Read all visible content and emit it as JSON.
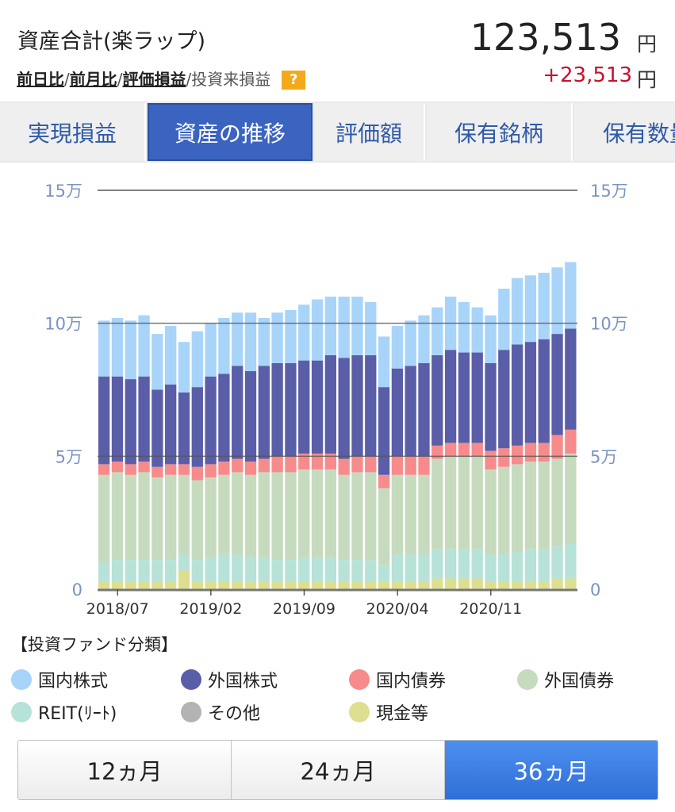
{
  "header": {
    "title": "資産合計(楽ラップ)",
    "total": "123,513",
    "total_unit": "円",
    "gain": "+23,513",
    "gain_unit": "円",
    "links": [
      "前日比",
      "前月比",
      "評価損益"
    ],
    "link_sep": "/",
    "plain_link": "/投資来損益",
    "help": "?"
  },
  "tabs": [
    {
      "label": "実現損益"
    },
    {
      "label": "資産の推移"
    },
    {
      "label": "評価額"
    },
    {
      "label": "保有銘柄"
    },
    {
      "label": "保有数量"
    }
  ],
  "chart_data": {
    "type": "bar",
    "stacked": true,
    "y_ticks": [
      "0",
      "5万",
      "10万",
      "15万"
    ],
    "ylim": [
      0,
      150000
    ],
    "x_tick_labels": [
      "2018/07",
      "2019/02",
      "2019/09",
      "2020/04",
      "2020/11"
    ],
    "x_tick_indices": [
      1,
      8,
      15,
      22,
      29
    ],
    "categories_count": 36,
    "legend": [
      {
        "name": "国内株式",
        "color": "#a8d4fa"
      },
      {
        "name": "外国株式",
        "color": "#5a5ea8"
      },
      {
        "name": "国内債券",
        "color": "#f78b8b"
      },
      {
        "name": "外国債券",
        "color": "#c6dbbe"
      },
      {
        "name": "REIT(ﾘｰﾄ)",
        "color": "#b7e2d8"
      },
      {
        "name": "その他",
        "color": "#b3b3b3"
      },
      {
        "name": "現金等",
        "color": "#dede90"
      }
    ],
    "series": [
      {
        "name": "現金等",
        "values": [
          3000,
          3000,
          3000,
          3000,
          3000,
          3000,
          7000,
          3000,
          3000,
          3000,
          3000,
          3000,
          3000,
          3000,
          3000,
          3000,
          3000,
          3000,
          3000,
          3000,
          3000,
          3000,
          3000,
          3000,
          3000,
          4000,
          4000,
          4000,
          4000,
          3000,
          3000,
          3000,
          3000,
          3000,
          4000,
          4000
        ]
      },
      {
        "name": "REIT(ﾘｰﾄ)",
        "values": [
          7000,
          8000,
          8000,
          8000,
          8000,
          8000,
          6000,
          8000,
          9000,
          10000,
          10000,
          9000,
          9000,
          8000,
          8000,
          9000,
          9000,
          9000,
          8000,
          8000,
          8000,
          6000,
          10000,
          10000,
          10000,
          11000,
          11000,
          11000,
          11000,
          10000,
          10000,
          11000,
          12000,
          12000,
          12000,
          13000
        ]
      },
      {
        "name": "外国債券",
        "values": [
          33000,
          33000,
          32000,
          33000,
          31000,
          32000,
          30000,
          30000,
          30000,
          30000,
          31000,
          31000,
          32000,
          33000,
          33000,
          33000,
          33000,
          33000,
          32000,
          33000,
          33000,
          29000,
          30000,
          30000,
          30000,
          34000,
          35000,
          35000,
          35000,
          32000,
          33000,
          33000,
          33000,
          33000,
          33000,
          34000
        ]
      },
      {
        "name": "国内債券",
        "values": [
          4000,
          4000,
          4000,
          4000,
          4000,
          4000,
          4000,
          5000,
          5000,
          5000,
          5000,
          5000,
          5000,
          6000,
          6000,
          6000,
          6000,
          6000,
          6000,
          6000,
          6000,
          5000,
          7000,
          7000,
          7000,
          5000,
          5000,
          5000,
          5000,
          7000,
          7000,
          7000,
          7000,
          7000,
          9000,
          9000
        ]
      },
      {
        "name": "外国株式",
        "values": [
          33000,
          32000,
          32000,
          32000,
          29000,
          30000,
          27000,
          30000,
          33000,
          33000,
          35000,
          34000,
          35000,
          35000,
          35000,
          35000,
          35000,
          37000,
          38000,
          38000,
          38000,
          33000,
          33000,
          34000,
          35000,
          34000,
          35000,
          34000,
          34000,
          33000,
          37000,
          38000,
          38000,
          39000,
          38000,
          38000
        ]
      },
      {
        "name": "国内株式",
        "values": [
          21000,
          22000,
          22000,
          23000,
          21000,
          22000,
          19000,
          21000,
          20000,
          21000,
          20000,
          22000,
          18000,
          19000,
          20000,
          21000,
          23000,
          22000,
          23000,
          22000,
          20000,
          19000,
          16000,
          17000,
          18000,
          18000,
          20000,
          19000,
          17000,
          18000,
          23000,
          25000,
          25000,
          25000,
          25000,
          25000
        ]
      }
    ]
  },
  "legend_title": "【投資ファンド分類】",
  "periods": [
    {
      "label": "12ヵ月",
      "active": false
    },
    {
      "label": "24ヵ月",
      "active": false
    },
    {
      "label": "36ヵ月",
      "active": true
    }
  ]
}
